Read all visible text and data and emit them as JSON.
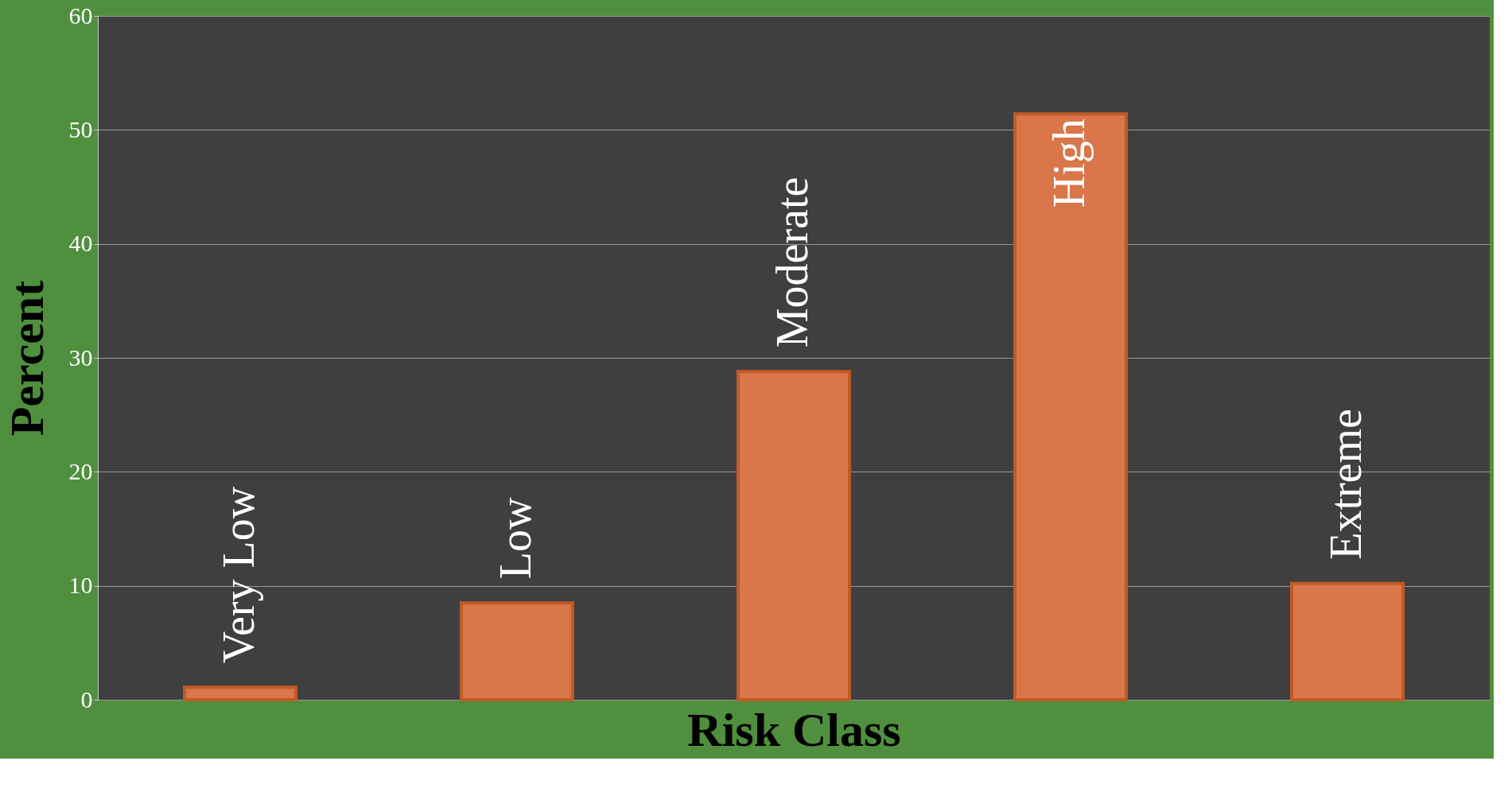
{
  "chart_data": {
    "type": "bar",
    "xlabel": "Risk Class",
    "ylabel": "Percent",
    "categories": [
      "Very Low",
      "Low",
      "Moderate",
      "High",
      "Extreme"
    ],
    "values": [
      1.1,
      8.5,
      28.8,
      51.4,
      10.2
    ],
    "color": "#d9774a",
    "ylim": [
      0,
      60
    ],
    "yticks": [
      0,
      10,
      20,
      30,
      40,
      50,
      60
    ],
    "grid": "y"
  }
}
